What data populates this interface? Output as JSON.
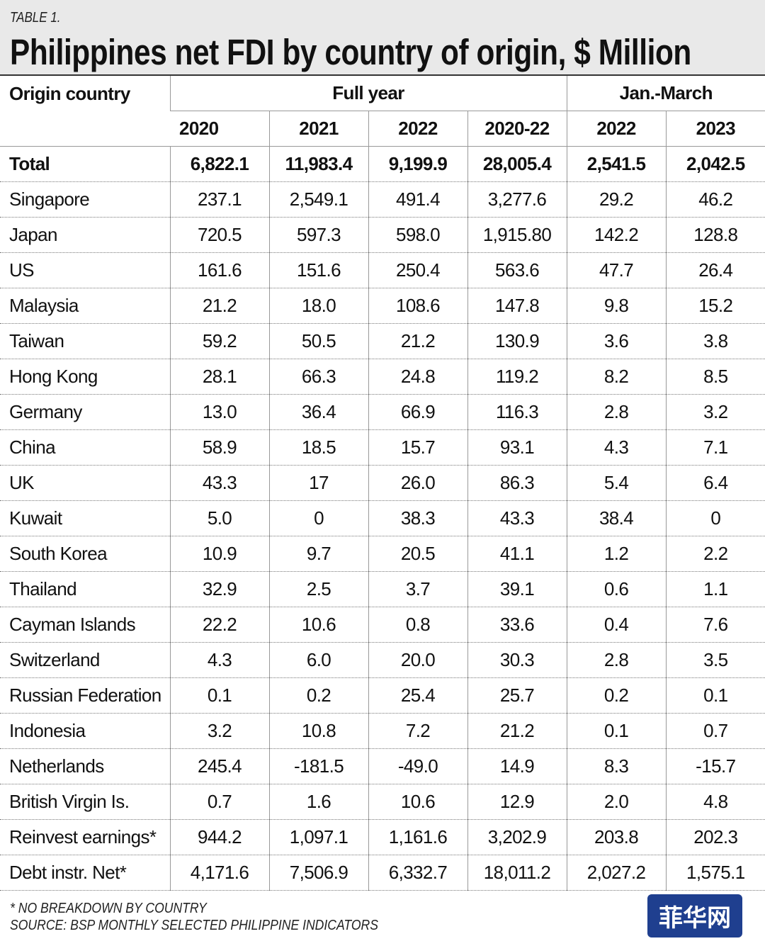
{
  "header": {
    "label": "TABLE 1.",
    "title": "Philippines net FDI by country of origin, $ Million"
  },
  "table": {
    "group_headers": [
      "Origin country",
      "Full year",
      "Jan.-March"
    ],
    "columns": [
      "2020",
      "2021",
      "2022",
      "2020-22",
      "2022",
      "2023"
    ],
    "rows": [
      [
        "Total",
        "6,822.1",
        "11,983.4",
        "9,199.9",
        "28,005.4",
        "2,541.5",
        "2,042.5"
      ],
      [
        "Singapore",
        "237.1",
        "2,549.1",
        "491.4",
        "3,277.6",
        "29.2",
        "46.2"
      ],
      [
        "Japan",
        "720.5",
        "597.3",
        "598.0",
        "1,915.80",
        "142.2",
        "128.8"
      ],
      [
        "US",
        "161.6",
        "151.6",
        "250.4",
        "563.6",
        "47.7",
        "26.4"
      ],
      [
        "Malaysia",
        "21.2",
        "18.0",
        "108.6",
        "147.8",
        "9.8",
        "15.2"
      ],
      [
        "Taiwan",
        "59.2",
        "50.5",
        "21.2",
        "130.9",
        "3.6",
        "3.8"
      ],
      [
        "Hong Kong",
        "28.1",
        "66.3",
        "24.8",
        "119.2",
        "8.2",
        "8.5"
      ],
      [
        "Germany",
        "13.0",
        "36.4",
        "66.9",
        "116.3",
        "2.8",
        "3.2"
      ],
      [
        "China",
        "58.9",
        "18.5",
        "15.7",
        "93.1",
        "4.3",
        "7.1"
      ],
      [
        "UK",
        "43.3",
        "17",
        "26.0",
        "86.3",
        "5.4",
        "6.4"
      ],
      [
        "Kuwait",
        "5.0",
        "0",
        "38.3",
        "43.3",
        "38.4",
        "0"
      ],
      [
        "South Korea",
        "10.9",
        "9.7",
        "20.5",
        "41.1",
        "1.2",
        "2.2"
      ],
      [
        "Thailand",
        "32.9",
        "2.5",
        "3.7",
        "39.1",
        "0.6",
        "1.1"
      ],
      [
        "Cayman Islands",
        "22.2",
        "10.6",
        "0.8",
        "33.6",
        "0.4",
        "7.6"
      ],
      [
        "Switzerland",
        "4.3",
        "6.0",
        "20.0",
        "30.3",
        "2.8",
        "3.5"
      ],
      [
        "Russian Federation",
        "0.1",
        "0.2",
        "25.4",
        "25.7",
        "0.2",
        "0.1"
      ],
      [
        "Indonesia",
        "3.2",
        "10.8",
        "7.2",
        "21.2",
        "0.1",
        "0.7"
      ],
      [
        "Netherlands",
        "245.4",
        "-181.5",
        "-49.0",
        "14.9",
        "8.3",
        "-15.7"
      ],
      [
        "British Virgin Is.",
        "0.7",
        "1.6",
        "10.6",
        "12.9",
        "2.0",
        "4.8"
      ],
      [
        "Reinvest earnings*",
        "944.2",
        "1,097.1",
        "1,161.6",
        "3,202.9",
        "203.8",
        "202.3"
      ],
      [
        "Debt instr. Net*",
        "4,171.6",
        "7,506.9",
        "6,332.7",
        "18,011.2",
        "2,027.2",
        "1,575.1"
      ]
    ]
  },
  "footer": {
    "notes": [
      "* NO BREAKDOWN BY COUNTRY",
      "SOURCE: BSP MONTHLY SELECTED PHILIPPINE INDICATORS"
    ],
    "watermark": "菲华网"
  }
}
